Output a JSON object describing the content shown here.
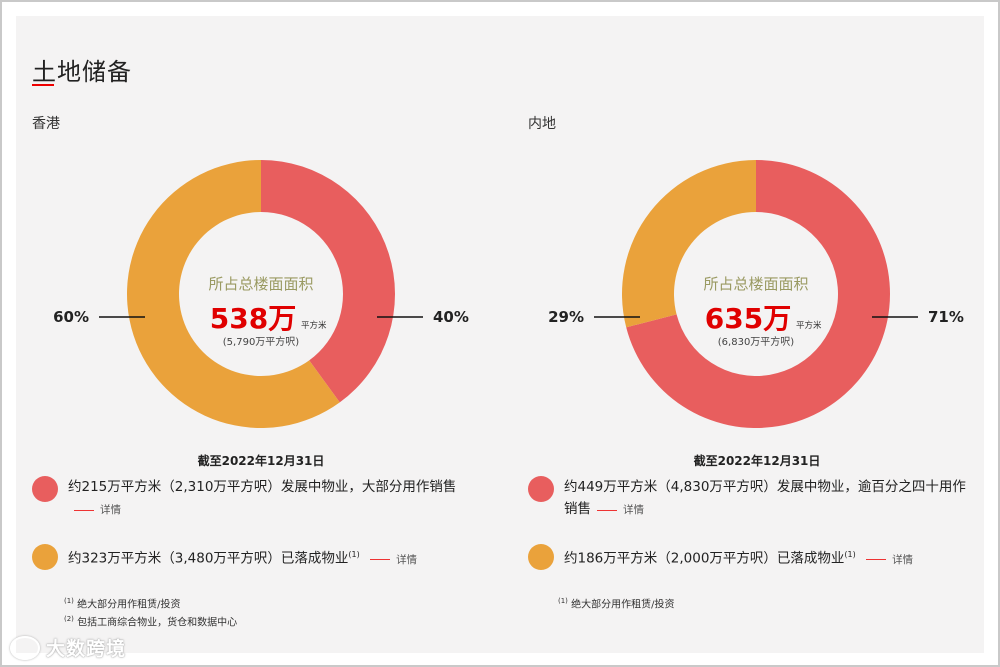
{
  "title": "土地储备",
  "colors": {
    "red": "#e85e5e",
    "orange": "#eaa23b",
    "accent": "#e00000"
  },
  "chart_data": [
    {
      "type": "pie",
      "region": "香港",
      "slices": [
        {
          "label": "40%",
          "value": 40,
          "color": "#e85e5e"
        },
        {
          "label": "60%",
          "value": 60,
          "color": "#eaa23b"
        }
      ],
      "center_caption": "所占总楼面面积",
      "center_value": "538万",
      "center_unit": "平方米",
      "center_sub": "(5,790万平方呎)",
      "date": "截至2022年12月31日"
    },
    {
      "type": "pie",
      "region": "内地",
      "slices": [
        {
          "label": "71%",
          "value": 71,
          "color": "#e85e5e"
        },
        {
          "label": "29%",
          "value": 29,
          "color": "#eaa23b"
        }
      ],
      "center_caption": "所占总楼面面积",
      "center_value": "635万",
      "center_unit": "平方米",
      "center_sub": "(6,830万平方呎)",
      "date": "截至2022年12月31日"
    }
  ],
  "legend": {
    "hk": [
      {
        "text": "约215万平方米（2,310万平方呎）发展中物业，大部分用作销售",
        "sup": "",
        "detail": "详情",
        "color": "#e85e5e"
      },
      {
        "text": "约323万平方米（3,480万平方呎）已落成物业",
        "sup": "(1)",
        "detail": "详情",
        "color": "#eaa23b"
      }
    ],
    "mainland": [
      {
        "text": "约449万平方米（4,830万平方呎）发展中物业，逾百分之四十用作销售",
        "sup": "",
        "detail": "详情",
        "color": "#e85e5e"
      },
      {
        "text": "约186万平方米（2,000万平方呎）已落成物业",
        "sup": "(1)",
        "detail": "详情",
        "color": "#eaa23b"
      }
    ]
  },
  "footnotes": {
    "hk": [
      {
        "mark": "(1)",
        "text": "绝大部分用作租赁/投资"
      },
      {
        "mark": "(2)",
        "text": "包括工商综合物业，货仓和数据中心"
      }
    ],
    "mainland": [
      {
        "mark": "(1)",
        "text": "绝大部分用作租赁/投资"
      }
    ]
  },
  "watermark": "大数跨境"
}
